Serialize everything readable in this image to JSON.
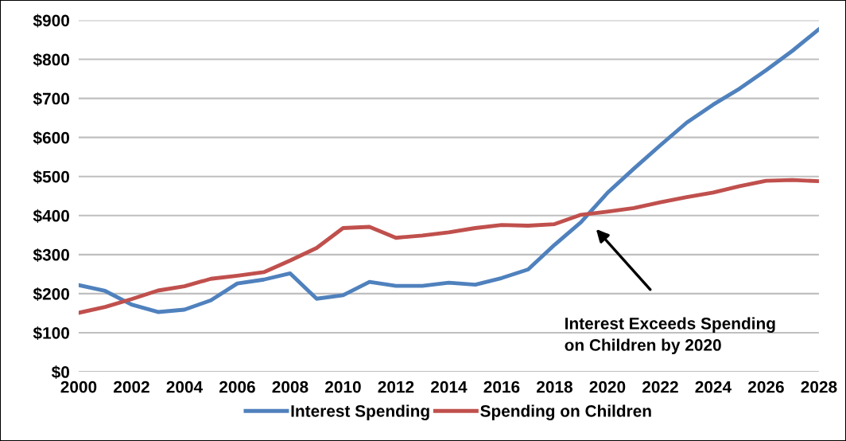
{
  "chart_data": {
    "type": "line",
    "x": [
      2000,
      2001,
      2002,
      2003,
      2004,
      2005,
      2006,
      2007,
      2008,
      2009,
      2010,
      2011,
      2012,
      2013,
      2014,
      2015,
      2016,
      2017,
      2018,
      2019,
      2020,
      2021,
      2022,
      2023,
      2024,
      2025,
      2026,
      2027,
      2028
    ],
    "series": [
      {
        "name": "Interest Spending",
        "color": "#4f81bd",
        "values": [
          222,
          207,
          172,
          153,
          159,
          183,
          226,
          236,
          252,
          187,
          196,
          230,
          220,
          220,
          228,
          223,
          240,
          262,
          325,
          383,
          458,
          520,
          580,
          638,
          684,
          725,
          772,
          822,
          877
        ]
      },
      {
        "name": "Spending on Children",
        "color": "#c0504d",
        "values": [
          151,
          166,
          186,
          208,
          219,
          238,
          246,
          255,
          285,
          317,
          368,
          371,
          343,
          349,
          357,
          368,
          376,
          374,
          378,
          402,
          410,
          419,
          434,
          447,
          459,
          475,
          489,
          491,
          488
        ]
      }
    ],
    "xlim": [
      2000,
      2028
    ],
    "xticks": [
      2000,
      2002,
      2004,
      2006,
      2008,
      2010,
      2012,
      2014,
      2016,
      2018,
      2020,
      2022,
      2024,
      2026,
      2028
    ],
    "ylim": [
      0,
      900
    ],
    "yticks": [
      {
        "value": 0,
        "label": "$0"
      },
      {
        "value": 100,
        "label": "$100"
      },
      {
        "value": 200,
        "label": "$200"
      },
      {
        "value": 300,
        "label": "$300"
      },
      {
        "value": 400,
        "label": "$400"
      },
      {
        "value": 500,
        "label": "$500"
      },
      {
        "value": 600,
        "label": "$600"
      },
      {
        "value": 700,
        "label": "$700"
      },
      {
        "value": 800,
        "label": "$800"
      },
      {
        "value": 900,
        "label": "$900"
      }
    ],
    "grid": "y",
    "legend": "bottom",
    "marker": "none",
    "line_style": "solid",
    "annotations": [
      "Interest Exceeds Spending\non Children by 2020"
    ]
  }
}
